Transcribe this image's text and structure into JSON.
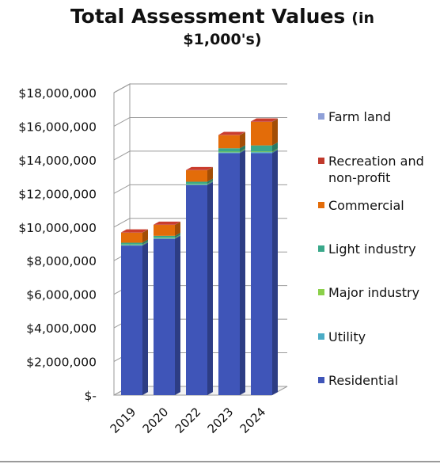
{
  "chart_data": {
    "type": "bar",
    "stacked": true,
    "three_d": true,
    "title_lines": [
      "Total Assessment Values",
      "$1,000's)"
    ],
    "title_suffix": "(in",
    "xlabel": "",
    "ylabel": "",
    "categories": [
      "2019",
      "2020",
      "2022",
      "2023",
      "2024"
    ],
    "ylim": [
      0,
      18000000
    ],
    "yticks": [
      0,
      2000000,
      4000000,
      6000000,
      8000000,
      10000000,
      12000000,
      14000000,
      16000000,
      18000000
    ],
    "ytick_labels": [
      "$-",
      "$2,000,000",
      "$4,000,000",
      "$6,000,000",
      "$8,000,000",
      "$10,000,000",
      "$12,000,000",
      "$14,000,000",
      "$16,000,000",
      "$18,000,000"
    ],
    "grid": true,
    "legend_position": "right",
    "series": [
      {
        "name": "Residential",
        "color": "#3f55b8",
        "values": [
          8900000,
          9300000,
          12500000,
          14400000,
          14400000
        ]
      },
      {
        "name": "Utility",
        "color": "#4bacc6",
        "values": [
          40000,
          40000,
          50000,
          50000,
          60000
        ]
      },
      {
        "name": "Major industry",
        "color": "#8bd04a",
        "values": [
          30000,
          30000,
          30000,
          40000,
          40000
        ]
      },
      {
        "name": "Light industry",
        "color": "#3aa88a",
        "values": [
          100000,
          110000,
          120000,
          200000,
          360000
        ]
      },
      {
        "name": "Commercial",
        "color": "#e36c09",
        "values": [
          600000,
          650000,
          680000,
          780000,
          1400000
        ]
      },
      {
        "name": "Recreation and non-profit",
        "color": "#c0392b",
        "values": [
          10000,
          10000,
          10000,
          10000,
          20000
        ]
      },
      {
        "name": "Farm land",
        "color": "#8fa0d8",
        "values": [
          5000,
          5000,
          5000,
          5000,
          5000
        ]
      }
    ],
    "legend_order": [
      "Farm land",
      "Recreation and non-profit",
      "Commercial",
      "Light industry",
      "Major industry",
      "Utility",
      "Residential"
    ],
    "legend_label_lines": {
      "Recreation and non-profit": [
        "Recreation and",
        "non-profit"
      ]
    }
  }
}
